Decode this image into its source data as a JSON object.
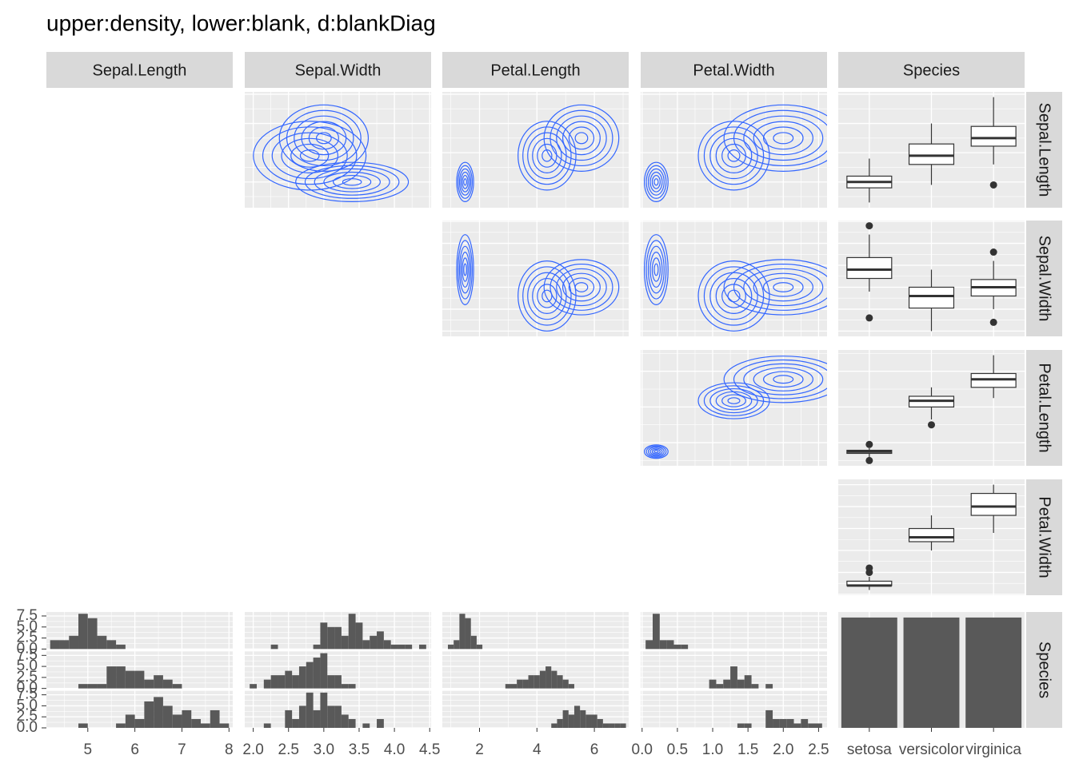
{
  "chart_data": {
    "type": "pairs",
    "title": "upper:density, lower:blank, d:blankDiag",
    "contour_color": "#3366ff",
    "hist_color": "#595959",
    "hist_ylim": [
      0,
      8.4
    ],
    "hist_yticks": [
      {
        "value": 0,
        "label": "0.0"
      },
      {
        "value": 2.5,
        "label": "2.5"
      },
      {
        "value": 5,
        "label": "5.0"
      },
      {
        "value": 7.5,
        "label": "7.5"
      }
    ],
    "variables": [
      {
        "name": "Sepal.Length",
        "lim": [
          4.12,
          8.08
        ],
        "ticks": [
          5,
          6,
          7,
          8
        ],
        "bins": [
          4.2,
          4.4,
          4.6,
          4.8,
          5.0,
          5.2,
          5.4,
          5.6,
          5.8,
          6.0,
          6.2,
          6.4,
          6.6,
          6.8,
          7.0,
          7.2,
          7.4,
          7.6,
          7.8,
          8.0
        ],
        "counts": [
          [
            2,
            2,
            3,
            8,
            7,
            3,
            2,
            1,
            0,
            0,
            0,
            0,
            0,
            0,
            0,
            0,
            0,
            0,
            0
          ],
          [
            0,
            0,
            0,
            1,
            1,
            1,
            5,
            5,
            4,
            4,
            2,
            3,
            2,
            1,
            0,
            0,
            0,
            0,
            0
          ],
          [
            0,
            0,
            0,
            1,
            0,
            0,
            0,
            1,
            3,
            2,
            6,
            7,
            5,
            3,
            4,
            2,
            1,
            4,
            1
          ]
        ]
      },
      {
        "name": "Sepal.Width",
        "lim": [
          1.88,
          4.52
        ],
        "ticks": [
          {
            "value": 2,
            "label": "2.0"
          },
          {
            "value": 2.5,
            "label": "2.5"
          },
          {
            "value": 3,
            "label": "3.0"
          },
          {
            "value": 3.5,
            "label": "3.5"
          },
          {
            "value": 4,
            "label": "4.0"
          },
          {
            "value": 4.5,
            "label": "4.5"
          }
        ],
        "bins": [
          1.95,
          2.05,
          2.15,
          2.25,
          2.35,
          2.45,
          2.55,
          2.65,
          2.75,
          2.85,
          2.95,
          3.05,
          3.15,
          3.25,
          3.35,
          3.45,
          3.55,
          3.65,
          3.75,
          3.85,
          3.95,
          4.05,
          4.15,
          4.25,
          4.35,
          4.45
        ],
        "counts": [
          [
            0,
            0,
            0,
            1,
            0,
            0,
            0,
            0,
            0,
            1,
            6,
            5,
            5,
            3,
            8,
            6,
            2,
            3,
            4,
            2,
            1,
            1,
            1,
            0,
            1
          ],
          [
            1,
            0,
            2,
            3,
            3,
            4,
            3,
            5,
            6,
            7,
            8,
            3,
            3,
            1,
            1,
            0,
            0,
            0,
            0,
            0,
            0,
            0,
            0,
            0,
            0
          ],
          [
            0,
            0,
            1,
            0,
            0,
            4,
            2,
            5,
            8,
            4,
            8,
            5,
            5,
            3,
            2,
            0,
            1,
            0,
            2,
            0,
            0,
            0,
            0,
            0,
            0
          ]
        ]
      },
      {
        "name": "Petal.Length",
        "lim": [
          0.705,
          7.195
        ],
        "ticks": [
          2,
          4,
          6
        ],
        "bins": [
          0.9,
          1.1,
          1.3,
          1.5,
          1.7,
          1.9,
          2.1,
          2.3,
          2.5,
          2.7,
          2.9,
          3.1,
          3.3,
          3.5,
          3.7,
          3.9,
          4.1,
          4.3,
          4.5,
          4.7,
          4.9,
          5.1,
          5.3,
          5.5,
          5.7,
          5.9,
          6.1,
          6.3,
          6.5,
          6.7,
          6.9,
          7.1
        ],
        "counts": [
          [
            1,
            2,
            8,
            7,
            3,
            1,
            0,
            0,
            0,
            0,
            0,
            0,
            0,
            0,
            0,
            0,
            0,
            0,
            0,
            0,
            0,
            0,
            0,
            0,
            0,
            0,
            0,
            0,
            0,
            0,
            0
          ],
          [
            0,
            0,
            0,
            0,
            0,
            0,
            0,
            0,
            0,
            0,
            1,
            1,
            2,
            2,
            3,
            3,
            4,
            5,
            4,
            3,
            2,
            1,
            0,
            0,
            0,
            0,
            0,
            0,
            0,
            0,
            0
          ],
          [
            0,
            0,
            0,
            0,
            0,
            0,
            0,
            0,
            0,
            0,
            0,
            0,
            0,
            0,
            0,
            0,
            0,
            0,
            1,
            2,
            4,
            3,
            5,
            4,
            3,
            3,
            2,
            1,
            1,
            1,
            1
          ]
        ]
      },
      {
        "name": "Petal.Width",
        "lim": [
          -0.02,
          2.62
        ],
        "ticks": [
          {
            "value": 0,
            "label": "0.0"
          },
          {
            "value": 0.5,
            "label": "0.5"
          },
          {
            "value": 1,
            "label": "1.0"
          },
          {
            "value": 1.5,
            "label": "1.5"
          },
          {
            "value": 2,
            "label": "2.0"
          },
          {
            "value": 2.5,
            "label": "2.5"
          }
        ],
        "bins": [
          0.05,
          0.15,
          0.25,
          0.35,
          0.45,
          0.55,
          0.65,
          0.75,
          0.85,
          0.95,
          1.05,
          1.15,
          1.25,
          1.35,
          1.45,
          1.55,
          1.65,
          1.75,
          1.85,
          1.95,
          2.05,
          2.15,
          2.25,
          2.35,
          2.45,
          2.55
        ],
        "counts": [
          [
            2,
            8,
            2,
            2,
            1,
            1,
            0,
            0,
            0,
            0,
            0,
            0,
            0,
            0,
            0,
            0,
            0,
            0,
            0,
            0,
            0,
            0,
            0,
            0,
            0
          ],
          [
            0,
            0,
            0,
            0,
            0,
            0,
            0,
            0,
            0,
            2,
            1,
            2,
            5,
            2,
            3,
            1,
            0,
            1,
            0,
            0,
            0,
            0,
            0,
            0,
            0
          ],
          [
            0,
            0,
            0,
            0,
            0,
            0,
            0,
            0,
            0,
            0,
            0,
            0,
            0,
            1,
            1,
            0,
            0,
            4,
            2,
            2,
            2,
            1,
            2,
            1,
            1
          ]
        ]
      }
    ],
    "species": {
      "name": "Species",
      "categories": [
        "setosa",
        "versicolor",
        "virginica"
      ],
      "values": [
        50,
        50,
        50
      ],
      "ylim": [
        0,
        52.5
      ]
    },
    "boxplots": [
      [
        {
          "stats": [
            4.3,
            4.8,
            5.0,
            5.2,
            5.8
          ],
          "outliers": []
        },
        {
          "stats": [
            4.9,
            5.6,
            5.9,
            6.3,
            7.0
          ],
          "outliers": []
        },
        {
          "stats": [
            5.6,
            6.225,
            6.5,
            6.9,
            7.9
          ],
          "outliers": [
            4.9
          ]
        }
      ],
      [
        {
          "stats": [
            2.9,
            3.2,
            3.4,
            3.675,
            4.2
          ],
          "outliers": [
            4.4,
            2.3
          ]
        },
        {
          "stats": [
            2.0,
            2.525,
            2.8,
            3.0,
            3.4
          ],
          "outliers": []
        },
        {
          "stats": [
            2.5,
            2.8,
            3.0,
            3.175,
            3.6
          ],
          "outliers": [
            3.8,
            2.2
          ]
        }
      ],
      [
        {
          "stats": [
            1.1,
            1.4,
            1.5,
            1.575,
            1.7
          ],
          "outliers": [
            1.9,
            1.0
          ]
        },
        {
          "stats": [
            3.3,
            4.0,
            4.35,
            4.6,
            5.1
          ],
          "outliers": [
            3.0
          ]
        },
        {
          "stats": [
            4.5,
            5.1,
            5.55,
            5.875,
            6.9
          ],
          "outliers": []
        }
      ],
      [
        {
          "stats": [
            0.1,
            0.2,
            0.2,
            0.3,
            0.4
          ],
          "outliers": [
            0.5,
            0.6
          ]
        },
        {
          "stats": [
            1.0,
            1.2,
            1.3,
            1.5,
            1.8
          ],
          "outliers": []
        },
        {
          "stats": [
            1.4,
            1.8,
            2.0,
            2.3,
            2.5
          ],
          "outliers": []
        }
      ]
    ]
  }
}
